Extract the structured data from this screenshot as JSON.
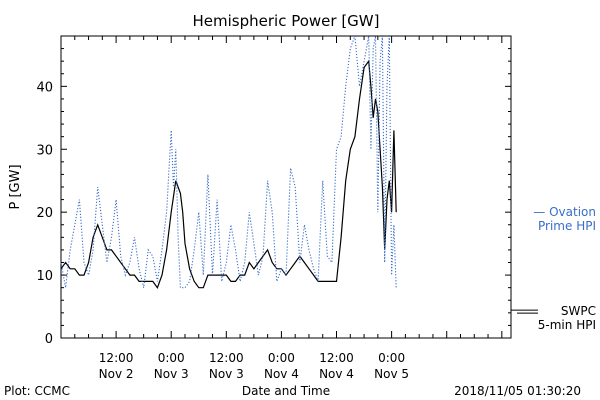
{
  "chart_data": {
    "type": "line",
    "title": "Hemispheric Power [GW]",
    "xlabel": "Date and Time",
    "ylabel": "P [GW]",
    "ylim": [
      0,
      48
    ],
    "xlim_hours": [
      0,
      98
    ],
    "yticks": [
      0,
      10,
      20,
      30,
      40
    ],
    "xticks": [
      {
        "hour": 12,
        "time": "12:00",
        "date": "Nov 2"
      },
      {
        "hour": 24,
        "time": "0:00",
        "date": "Nov 3"
      },
      {
        "hour": 36,
        "time": "12:00",
        "date": "Nov 3"
      },
      {
        "hour": 48,
        "time": "0:00",
        "date": "Nov 4"
      },
      {
        "hour": 60,
        "time": "12:00",
        "date": "Nov 4"
      },
      {
        "hour": 72,
        "time": "0:00",
        "date": "Nov 5"
      }
    ],
    "x_minor_tick_step_hours": 3,
    "grid": false,
    "series": [
      {
        "name": "SWPC 5-min HPI",
        "color": "#000000",
        "style": "solid",
        "x": [
          0,
          1,
          2,
          3,
          4,
          5,
          6,
          7,
          8,
          9,
          10,
          11,
          12,
          13,
          14,
          15,
          16,
          17,
          18,
          19,
          20,
          21,
          22,
          23,
          24,
          25,
          26,
          26.5,
          27,
          28,
          29,
          30,
          31,
          32,
          33,
          34,
          35,
          36,
          37,
          38,
          39,
          40,
          41,
          42,
          43,
          44,
          45,
          46,
          47,
          48,
          49,
          50,
          51,
          52,
          53,
          54,
          55,
          56,
          57,
          58,
          59,
          60,
          61,
          62,
          63,
          64,
          65,
          66,
          67,
          67.5,
          68,
          68.5,
          69,
          69.5,
          70,
          70.5,
          71,
          71.5,
          72,
          72.5,
          73
        ],
        "y": [
          11,
          12,
          11,
          11,
          10,
          10,
          12,
          16,
          18,
          16,
          14,
          14,
          13,
          12,
          11,
          10,
          10,
          9,
          9,
          9,
          9,
          8,
          10,
          14,
          20,
          25,
          23,
          20,
          15,
          11,
          9,
          8,
          8,
          10,
          10,
          10,
          10,
          10,
          9,
          9,
          10,
          10,
          12,
          11,
          12,
          13,
          14,
          12,
          11,
          11,
          10,
          11,
          12,
          13,
          12,
          11,
          10,
          9,
          9,
          9,
          9,
          9,
          16,
          25,
          30,
          32,
          38,
          43,
          44,
          40,
          35,
          38,
          36,
          30,
          24,
          14,
          22,
          25,
          20,
          33,
          20
        ],
        "label_at_right": [
          "SWPC",
          "5-min HPI"
        ],
        "label_value": 3
      },
      {
        "name": "Ovation Prime HPI",
        "color": "#3a6ec8",
        "style": "dotted",
        "x": [
          0,
          1,
          2,
          3,
          4,
          5,
          6,
          7,
          8,
          9,
          10,
          11,
          12,
          13,
          14,
          15,
          16,
          17,
          18,
          19,
          20,
          21,
          22,
          23,
          24,
          24.5,
          25,
          25.5,
          26,
          27,
          28,
          29,
          30,
          31,
          32,
          33,
          34,
          35,
          36,
          37,
          38,
          39,
          40,
          41,
          42,
          43,
          44,
          45,
          46,
          47,
          48,
          49,
          50,
          51,
          52,
          53,
          54,
          55,
          56,
          57,
          58,
          59,
          60,
          61,
          62,
          63,
          64,
          65,
          66,
          67,
          67.5,
          68,
          68.5,
          69,
          69.5,
          70,
          70.5,
          71,
          71.5,
          72,
          72.5,
          73
        ],
        "y": [
          12,
          8,
          14,
          18,
          22,
          12,
          10,
          14,
          24,
          18,
          12,
          16,
          22,
          13,
          10,
          12,
          16,
          11,
          8,
          14,
          13,
          9,
          14,
          20,
          33,
          24,
          30,
          16,
          8,
          8,
          9,
          14,
          20,
          10,
          26,
          10,
          22,
          9,
          12,
          18,
          14,
          9,
          12,
          20,
          15,
          10,
          13,
          25,
          20,
          9,
          11,
          10,
          27,
          24,
          12,
          18,
          14,
          11,
          9,
          25,
          13,
          12,
          30,
          32,
          40,
          46,
          48,
          40,
          44,
          48,
          30,
          46,
          48,
          20,
          44,
          48,
          12,
          40,
          48,
          10,
          18,
          8
        ],
        "label_at_right": [
          "— Ovation",
          "Prime HPI"
        ],
        "label_value": 20
      }
    ]
  },
  "footer": {
    "plot_credit": "Plot: CCMC",
    "timestamp": "2018/11/05 01:30:20"
  }
}
